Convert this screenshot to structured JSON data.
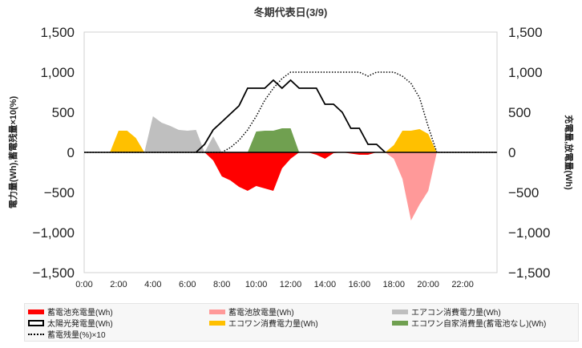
{
  "chart_data": {
    "type": "area",
    "title": "冬期代表日(3/9)",
    "ylabel_left": "電力量(Wh),蓄電残量×10(%)",
    "ylabel_right": "充電量,放電量(Wh)",
    "ylim": [
      -1500,
      1500
    ],
    "yticks": [
      -1500,
      -1000,
      -500,
      0,
      500,
      1000,
      1500
    ],
    "ytick_labels": [
      "−1,500",
      "−1,000",
      "−500",
      "0",
      "500",
      "1,000",
      "1,500"
    ],
    "xlim": [
      0,
      24
    ],
    "xticks": [
      0,
      2,
      4,
      6,
      8,
      10,
      12,
      14,
      16,
      18,
      20,
      22
    ],
    "xtick_labels": [
      "0:00",
      "2:00",
      "4:00",
      "6:00",
      "8:00",
      "10:00",
      "12:00",
      "14:00",
      "16:00",
      "18:00",
      "20:00",
      "22:00"
    ],
    "series": [
      {
        "name": "蓄電池充電量(Wh)",
        "kind": "area",
        "color": "#ff0000",
        "points": [
          [
            7,
            0
          ],
          [
            7.5,
            -100
          ],
          [
            8,
            -300
          ],
          [
            8.5,
            -350
          ],
          [
            9,
            -430
          ],
          [
            9.5,
            -480
          ],
          [
            10,
            -420
          ],
          [
            10.5,
            -450
          ],
          [
            11,
            -480
          ],
          [
            11.5,
            -200
          ],
          [
            12,
            -80
          ],
          [
            12.5,
            0
          ],
          [
            13,
            0
          ],
          [
            13.5,
            -30
          ],
          [
            14,
            -80
          ],
          [
            14.5,
            -10
          ],
          [
            15,
            0
          ],
          [
            16,
            -30
          ],
          [
            16.5,
            -30
          ],
          [
            17,
            0
          ]
        ]
      },
      {
        "name": "蓄電池放電量(Wh)",
        "kind": "area",
        "color": "#ff9999",
        "points": [
          [
            17.5,
            0
          ],
          [
            18,
            -80
          ],
          [
            18.5,
            -330
          ],
          [
            19,
            -850
          ],
          [
            19.5,
            -650
          ],
          [
            20,
            -480
          ],
          [
            20.5,
            0
          ]
        ]
      },
      {
        "name": "エアコン消費電力量(Wh)",
        "kind": "area",
        "color": "#bfbfbf",
        "points": [
          [
            3.5,
            0
          ],
          [
            4,
            450
          ],
          [
            4.5,
            370
          ],
          [
            5,
            330
          ],
          [
            5.5,
            280
          ],
          [
            6,
            270
          ],
          [
            6.5,
            280
          ],
          [
            7,
            0
          ],
          [
            7.5,
            200
          ],
          [
            8,
            0
          ]
        ]
      },
      {
        "name": "太陽光発電量(Wh)",
        "kind": "line",
        "color": "#000000",
        "points": [
          [
            6.5,
            0
          ],
          [
            7,
            100
          ],
          [
            7.5,
            280
          ],
          [
            8,
            380
          ],
          [
            8.5,
            480
          ],
          [
            9,
            580
          ],
          [
            9.5,
            800
          ],
          [
            10,
            800
          ],
          [
            10.5,
            800
          ],
          [
            11,
            900
          ],
          [
            11.5,
            800
          ],
          [
            12,
            900
          ],
          [
            12.5,
            800
          ],
          [
            13,
            800
          ],
          [
            13.5,
            800
          ],
          [
            14,
            600
          ],
          [
            14.5,
            600
          ],
          [
            15,
            500
          ],
          [
            15.5,
            300
          ],
          [
            16,
            300
          ],
          [
            16.5,
            100
          ],
          [
            17,
            100
          ],
          [
            17.5,
            0
          ]
        ]
      },
      {
        "name": "エコワン消費電力量(Wh)",
        "kind": "area",
        "color": "#ffc000",
        "points": [
          [
            1.5,
            0
          ],
          [
            2,
            270
          ],
          [
            2.5,
            270
          ],
          [
            3,
            180
          ],
          [
            3.5,
            0
          ],
          [
            17.5,
            0
          ],
          [
            18,
            90
          ],
          [
            18.5,
            270
          ],
          [
            19,
            270
          ],
          [
            19.5,
            290
          ],
          [
            20,
            230
          ],
          [
            20.5,
            0
          ]
        ]
      },
      {
        "name": "エコワン自家消費量(蓄電池なし)(Wh)",
        "kind": "area",
        "color": "#70a050",
        "points": [
          [
            9.5,
            0
          ],
          [
            10,
            260
          ],
          [
            10.5,
            270
          ],
          [
            11,
            270
          ],
          [
            11.5,
            300
          ],
          [
            12,
            300
          ],
          [
            12.5,
            0
          ]
        ]
      },
      {
        "name": "蓄電残量(%)×10",
        "kind": "dotted",
        "color": "#000000",
        "points": [
          [
            0,
            0
          ],
          [
            7,
            0
          ],
          [
            8,
            0
          ],
          [
            8.5,
            60
          ],
          [
            9,
            150
          ],
          [
            9.5,
            280
          ],
          [
            10,
            450
          ],
          [
            10.5,
            650
          ],
          [
            11,
            800
          ],
          [
            11.5,
            920
          ],
          [
            12,
            1000
          ],
          [
            16,
            1000
          ],
          [
            16.5,
            950
          ],
          [
            17,
            1000
          ],
          [
            18,
            1000
          ],
          [
            18.5,
            950
          ],
          [
            19,
            860
          ],
          [
            19.5,
            680
          ],
          [
            20,
            320
          ],
          [
            20.5,
            0
          ],
          [
            24,
            0
          ]
        ]
      }
    ],
    "legend": [
      {
        "label": "蓄電池充電量(Wh)",
        "style": "fill",
        "color": "#ff0000"
      },
      {
        "label": "蓄電池放電量(Wh)",
        "style": "fill",
        "color": "#ff9999"
      },
      {
        "label": "エアコン消費電力量(Wh)",
        "style": "fill",
        "color": "#bfbfbf"
      },
      {
        "label": "太陽光発電量(Wh)",
        "style": "box",
        "color": "#000000"
      },
      {
        "label": "エコワン消費電力量(Wh)",
        "style": "fill",
        "color": "#ffc000"
      },
      {
        "label": "エコワン自家消費量(蓄電池なし)(Wh)",
        "style": "fill",
        "color": "#70a050"
      },
      {
        "label": "蓄電残量(%)×10",
        "style": "dotted",
        "color": "#000000"
      }
    ]
  }
}
